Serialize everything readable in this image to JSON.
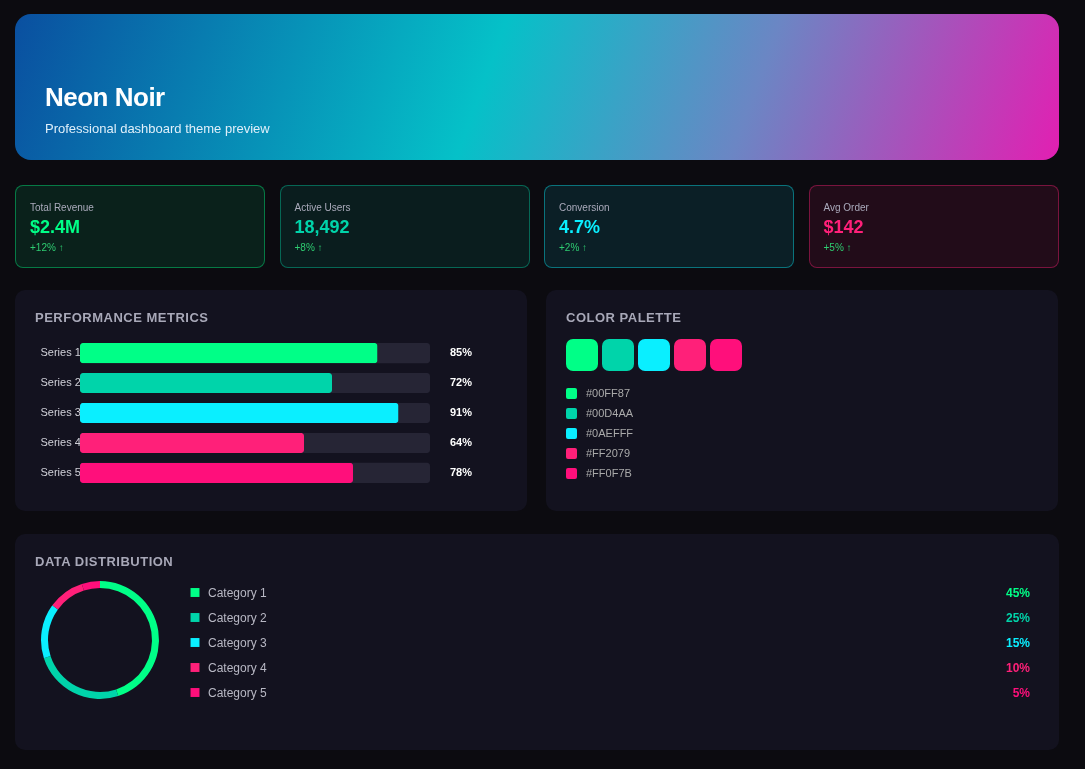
{
  "chart_data": [
    {
      "type": "other",
      "title": "Neon Noir",
      "subtitle": "Professional dashboard theme preview",
      "categories": [
        "Total Revenue",
        "Active Users",
        "Conversion",
        "Avg Order"
      ],
      "value_labels": [
        "$2.4M",
        "18,492",
        "4.7%",
        "$142"
      ],
      "annotations": [
        "+12% ↑",
        "+8% ↑",
        "+2% ↑",
        "+5% ↑"
      ],
      "colors": [
        "#00ff87",
        "#00d4aa",
        "#0aefff",
        "#ff2079"
      ]
    },
    {
      "type": "bar",
      "orientation": "horizontal",
      "title": "PERFORMANCE METRICS",
      "categories": [
        "Series 1",
        "Series 2",
        "Series 3",
        "Series 4",
        "Series 5"
      ],
      "values": [
        85,
        72,
        91,
        64,
        78
      ],
      "value_labels": [
        "85%",
        "72%",
        "91%",
        "64%",
        "78%"
      ],
      "colors": [
        "#00ff87",
        "#00d4aa",
        "#0aefff",
        "#ff2079",
        "#ff0f7b"
      ],
      "xlim": [
        0,
        100
      ],
      "tick_labels": "y"
    },
    {
      "type": "other",
      "title": "COLOR PALETTE",
      "categories": [
        "#00FF87",
        "#00D4AA",
        "#0AEFFF",
        "#FF2079",
        "#FF0F7B"
      ],
      "colors": [
        "#00ff87",
        "#00d4aa",
        "#0aefff",
        "#ff2079",
        "#ff0f7b"
      ]
    },
    {
      "type": "donut",
      "title": "DATA DISTRIBUTION",
      "categories": [
        "Category 1",
        "Category 2",
        "Category 3",
        "Category 4",
        "Category 5"
      ],
      "values": [
        45,
        25,
        15,
        10,
        5
      ],
      "value_labels": [
        "45%",
        "25%",
        "15%",
        "10%",
        "5%"
      ],
      "colors": [
        "#00ff87",
        "#00d4aa",
        "#0aefff",
        "#ff2079",
        "#ff0f7b"
      ],
      "legend": "right"
    }
  ]
}
